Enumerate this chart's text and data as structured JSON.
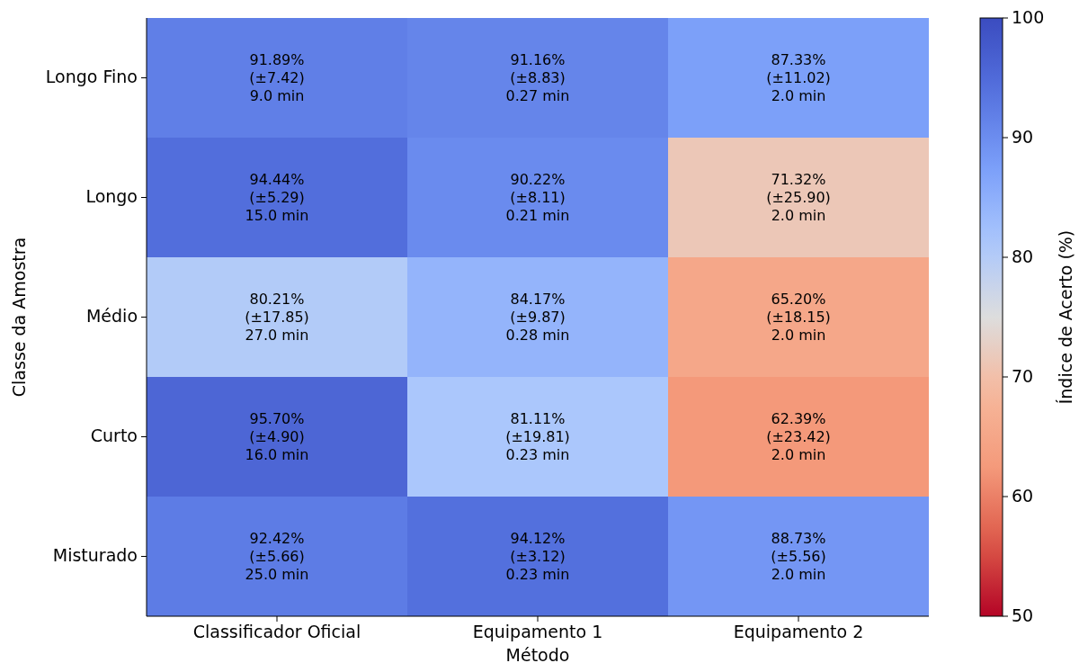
{
  "chart_data": {
    "type": "heatmap",
    "xlabel": "Método",
    "ylabel": "Classe da Amostra",
    "clabel": "Índice de Acerto (%)",
    "categories": [
      "Classificador Oficial",
      "Equipamento 1",
      "Equipamento 2"
    ],
    "y_categories": [
      "Longo Fino",
      "Longo",
      "Médio",
      "Curto",
      "Misturado"
    ],
    "cells": [
      [
        91.89,
        91.16,
        87.33
      ],
      [
        94.44,
        90.22,
        71.32
      ],
      [
        80.21,
        84.17,
        65.2
      ],
      [
        95.7,
        81.11,
        62.39
      ],
      [
        92.42,
        94.12,
        88.73
      ]
    ],
    "cell_labels": [
      [
        "91.89%\n(±7.42)\n9.0 min",
        "91.16%\n(±8.83)\n0.27 min",
        "87.33%\n(±11.02)\n2.0 min"
      ],
      [
        "94.44%\n(±5.29)\n15.0 min",
        "90.22%\n(±8.11)\n0.21 min",
        "71.32%\n(±25.90)\n2.0 min"
      ],
      [
        "80.21%\n(±17.85)\n27.0 min",
        "84.17%\n(±9.87)\n0.28 min",
        "65.20%\n(±18.15)\n2.0 min"
      ],
      [
        "95.70%\n(±4.90)\n16.0 min",
        "81.11%\n(±19.81)\n0.23 min",
        "62.39%\n(±23.42)\n2.0 min"
      ],
      [
        "92.42%\n(±5.66)\n25.0 min",
        "94.12%\n(±3.12)\n0.23 min",
        "88.73%\n(±5.56)\n2.0 min"
      ]
    ],
    "clim": [
      50,
      100
    ],
    "cticks": [
      50,
      60,
      70,
      80,
      90,
      100
    ]
  }
}
